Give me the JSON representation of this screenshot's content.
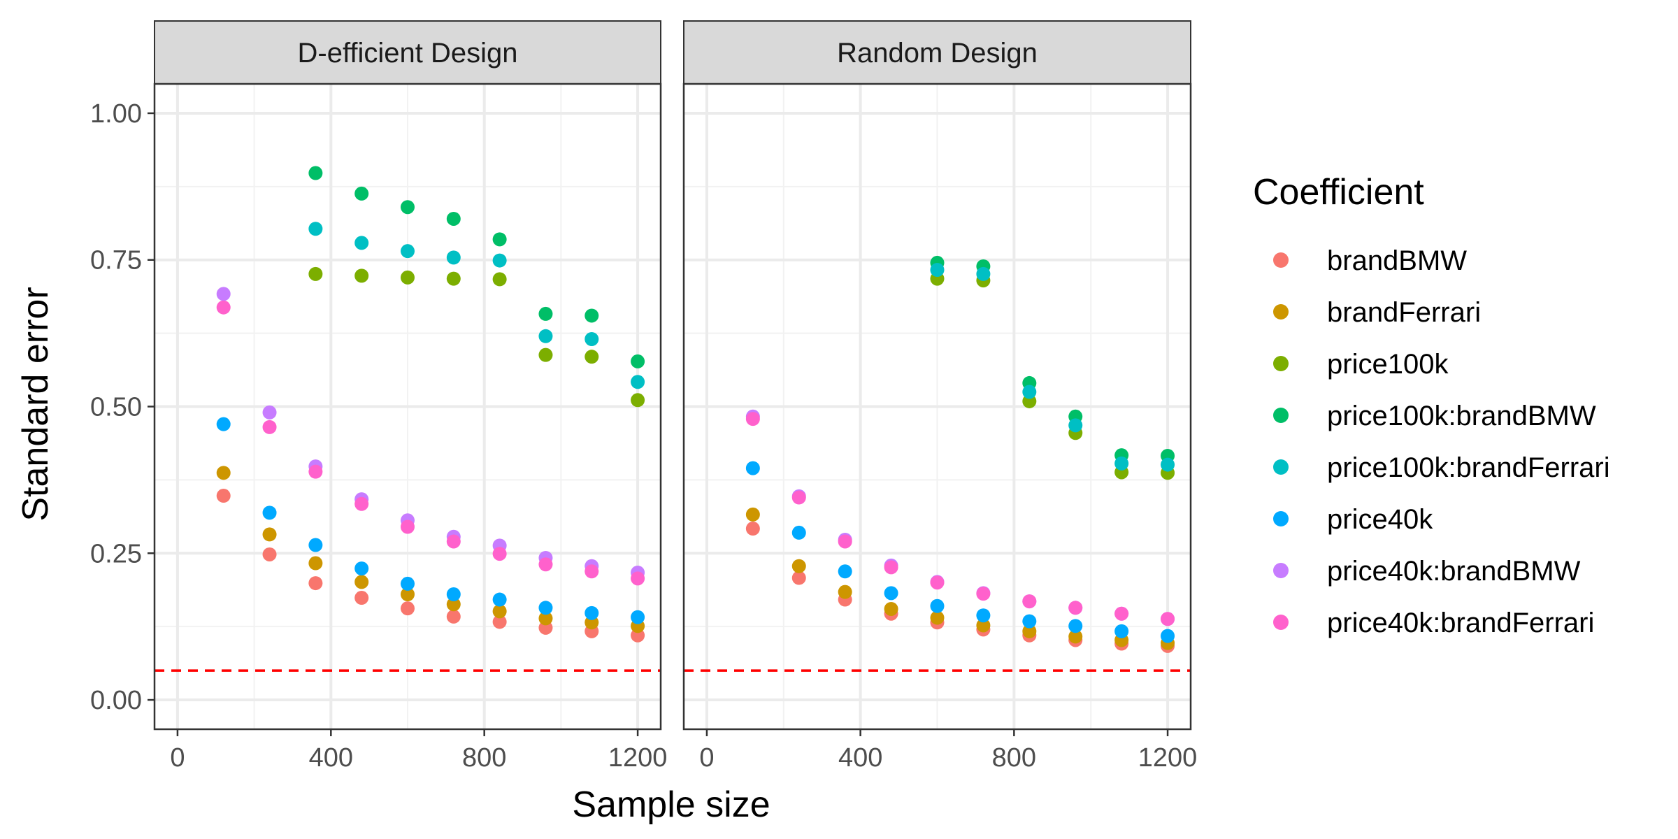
{
  "chart_data": {
    "type": "scatter",
    "facets": [
      {
        "title": "D-efficient Design",
        "series": [
          {
            "name": "brandBMW",
            "points": [
              [
                120,
                0.348
              ],
              [
                240,
                0.248
              ],
              [
                360,
                0.199
              ],
              [
                480,
                0.174
              ],
              [
                600,
                0.156
              ],
              [
                720,
                0.142
              ],
              [
                840,
                0.133
              ],
              [
                960,
                0.123
              ],
              [
                1080,
                0.117
              ],
              [
                1200,
                0.11
              ]
            ]
          },
          {
            "name": "brandFerrari",
            "points": [
              [
                120,
                0.387
              ],
              [
                240,
                0.282
              ],
              [
                360,
                0.233
              ],
              [
                480,
                0.201
              ],
              [
                600,
                0.18
              ],
              [
                720,
                0.163
              ],
              [
                840,
                0.151
              ],
              [
                960,
                0.139
              ],
              [
                1080,
                0.132
              ],
              [
                1200,
                0.126
              ]
            ]
          },
          {
            "name": "price100k",
            "points": [
              [
                360,
                0.726
              ],
              [
                480,
                0.723
              ],
              [
                600,
                0.72
              ],
              [
                720,
                0.718
              ],
              [
                840,
                0.717
              ],
              [
                960,
                0.588
              ],
              [
                1080,
                0.585
              ],
              [
                1200,
                0.511
              ]
            ]
          },
          {
            "name": "price100k:brandBMW",
            "points": [
              [
                360,
                0.898
              ],
              [
                480,
                0.863
              ],
              [
                600,
                0.84
              ],
              [
                720,
                0.82
              ],
              [
                840,
                0.785
              ],
              [
                960,
                0.658
              ],
              [
                1080,
                0.655
              ],
              [
                1200,
                0.577
              ]
            ]
          },
          {
            "name": "price100k:brandFerrari",
            "points": [
              [
                360,
                0.803
              ],
              [
                480,
                0.779
              ],
              [
                600,
                0.765
              ],
              [
                720,
                0.754
              ],
              [
                840,
                0.749
              ],
              [
                960,
                0.62
              ],
              [
                1080,
                0.615
              ],
              [
                1200,
                0.542
              ]
            ]
          },
          {
            "name": "price40k",
            "points": [
              [
                120,
                0.47
              ],
              [
                240,
                0.319
              ],
              [
                360,
                0.264
              ],
              [
                480,
                0.224
              ],
              [
                600,
                0.198
              ],
              [
                720,
                0.18
              ],
              [
                840,
                0.171
              ],
              [
                960,
                0.157
              ],
              [
                1080,
                0.148
              ],
              [
                1200,
                0.141
              ]
            ]
          },
          {
            "name": "price40k:brandBMW",
            "points": [
              [
                120,
                0.692
              ],
              [
                240,
                0.49
              ],
              [
                360,
                0.398
              ],
              [
                480,
                0.342
              ],
              [
                600,
                0.306
              ],
              [
                720,
                0.278
              ],
              [
                840,
                0.263
              ],
              [
                960,
                0.242
              ],
              [
                1080,
                0.228
              ],
              [
                1200,
                0.217
              ]
            ]
          },
          {
            "name": "price40k:brandFerrari",
            "points": [
              [
                120,
                0.669
              ],
              [
                240,
                0.465
              ],
              [
                360,
                0.389
              ],
              [
                480,
                0.334
              ],
              [
                600,
                0.295
              ],
              [
                720,
                0.27
              ],
              [
                840,
                0.249
              ],
              [
                960,
                0.231
              ],
              [
                1080,
                0.219
              ],
              [
                1200,
                0.207
              ]
            ]
          }
        ]
      },
      {
        "title": "Random Design",
        "series": [
          {
            "name": "brandBMW",
            "points": [
              [
                120,
                0.292
              ],
              [
                240,
                0.208
              ],
              [
                360,
                0.171
              ],
              [
                480,
                0.147
              ],
              [
                600,
                0.132
              ],
              [
                720,
                0.12
              ],
              [
                840,
                0.11
              ],
              [
                960,
                0.102
              ],
              [
                1080,
                0.096
              ],
              [
                1200,
                0.092
              ]
            ]
          },
          {
            "name": "brandFerrari",
            "points": [
              [
                120,
                0.316
              ],
              [
                240,
                0.228
              ],
              [
                360,
                0.184
              ],
              [
                480,
                0.155
              ],
              [
                600,
                0.14
              ],
              [
                720,
                0.127
              ],
              [
                840,
                0.117
              ],
              [
                960,
                0.108
              ],
              [
                1080,
                0.102
              ],
              [
                1200,
                0.097
              ]
            ]
          },
          {
            "name": "price100k",
            "points": [
              [
                600,
                0.718
              ],
              [
                720,
                0.715
              ],
              [
                840,
                0.509
              ],
              [
                960,
                0.455
              ],
              [
                1080,
                0.388
              ],
              [
                1200,
                0.387
              ]
            ]
          },
          {
            "name": "price100k:brandBMW",
            "points": [
              [
                600,
                0.745
              ],
              [
                720,
                0.739
              ],
              [
                840,
                0.54
              ],
              [
                960,
                0.483
              ],
              [
                1080,
                0.417
              ],
              [
                1200,
                0.416
              ]
            ]
          },
          {
            "name": "price100k:brandFerrari",
            "points": [
              [
                600,
                0.733
              ],
              [
                720,
                0.726
              ],
              [
                840,
                0.525
              ],
              [
                960,
                0.468
              ],
              [
                1080,
                0.403
              ],
              [
                1200,
                0.401
              ]
            ]
          },
          {
            "name": "price40k",
            "points": [
              [
                120,
                0.395
              ],
              [
                240,
                0.285
              ],
              [
                360,
                0.219
              ],
              [
                480,
                0.182
              ],
              [
                600,
                0.16
              ],
              [
                720,
                0.144
              ],
              [
                840,
                0.134
              ],
              [
                960,
                0.126
              ],
              [
                1080,
                0.117
              ],
              [
                1200,
                0.109
              ]
            ]
          },
          {
            "name": "price40k:brandBMW",
            "points": [
              [
                120,
                0.483
              ],
              [
                240,
                0.347
              ],
              [
                360,
                0.273
              ],
              [
                480,
                0.229
              ],
              [
                600,
                0.201
              ],
              [
                720,
                0.182
              ],
              [
                840,
                0.168
              ],
              [
                960,
                0.157
              ],
              [
                1080,
                0.147
              ],
              [
                1200,
                0.138
              ]
            ]
          },
          {
            "name": "price40k:brandFerrari",
            "points": [
              [
                120,
                0.479
              ],
              [
                240,
                0.345
              ],
              [
                360,
                0.27
              ],
              [
                480,
                0.226
              ],
              [
                600,
                0.2
              ],
              [
                720,
                0.181
              ],
              [
                840,
                0.168
              ],
              [
                960,
                0.157
              ],
              [
                1080,
                0.147
              ],
              [
                1200,
                0.138
              ]
            ]
          }
        ]
      }
    ],
    "colors": {
      "brandBMW": "#F8766D",
      "brandFerrari": "#CD9600",
      "price100k": "#7CAE00",
      "price100k:brandBMW": "#00BE67",
      "price100k:brandFerrari": "#00BFC4",
      "price40k": "#00A9FF",
      "price40k:brandBMW": "#C77CFF",
      "price40k:brandFerrari": "#FF61CC"
    },
    "xlabel": "Sample size",
    "ylabel": "Standard error",
    "xlim": [
      -60,
      1260
    ],
    "ylim": [
      -0.05,
      1.05
    ],
    "xticks": [
      0,
      400,
      800,
      1200
    ],
    "yticks": [
      0.0,
      0.25,
      0.5,
      0.75,
      1.0
    ],
    "xtick_labels": [
      "0",
      "400",
      "800",
      "1200"
    ],
    "ytick_labels": [
      "0.00",
      "0.25",
      "0.50",
      "0.75",
      "1.00"
    ],
    "reference_line": {
      "y": 0.05,
      "color": "#ff0000",
      "style": "dashed"
    },
    "legend": {
      "title": "Coefficient",
      "position": "right",
      "entries": [
        "brandBMW",
        "brandFerrari",
        "price100k",
        "price100k:brandBMW",
        "price100k:brandFerrari",
        "price40k",
        "price40k:brandBMW",
        "price40k:brandFerrari"
      ]
    },
    "grid": true,
    "strip_background": "#d9d9d9"
  }
}
